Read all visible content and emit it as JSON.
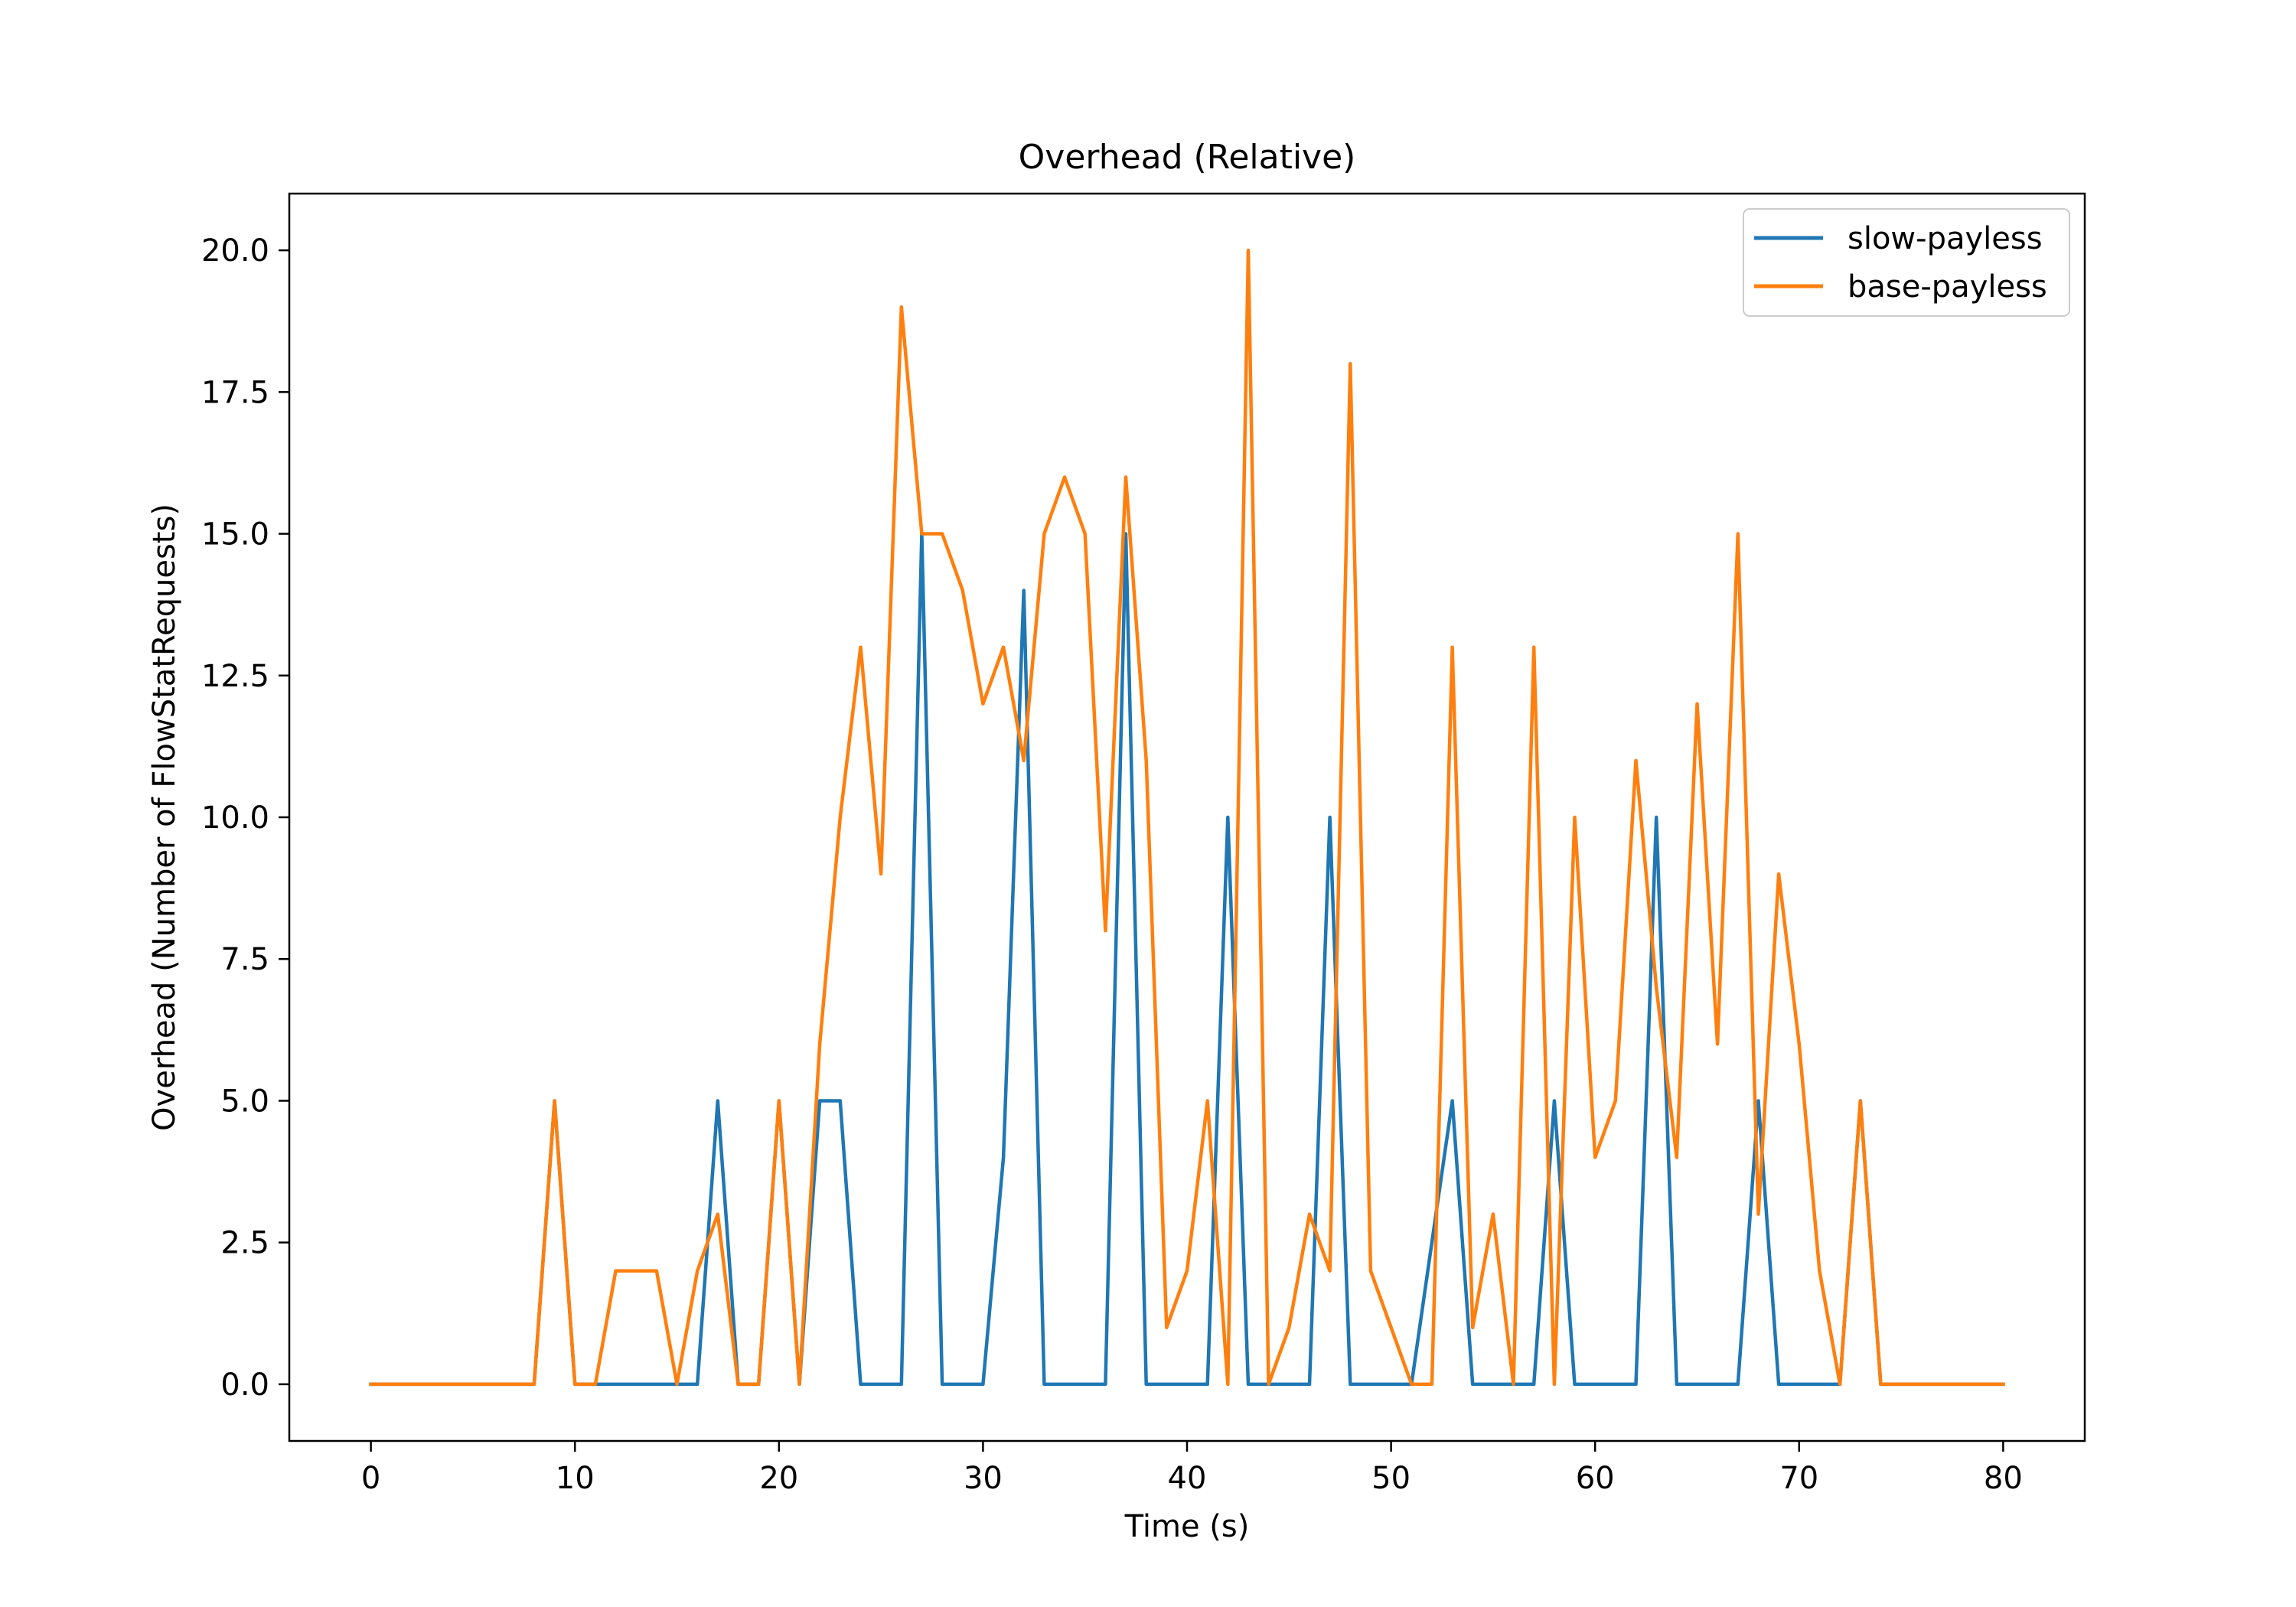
{
  "chart_data": {
    "type": "line",
    "title": "Overhead (Relative)",
    "xlabel": "Time (s)",
    "ylabel": "Overhead (Number of FlowStatRequests)",
    "xlim": [
      -4,
      84
    ],
    "ylim": [
      -1,
      21
    ],
    "xticks": [
      0,
      10,
      20,
      30,
      40,
      50,
      60,
      70,
      80
    ],
    "xtick_labels": [
      "0",
      "10",
      "20",
      "30",
      "40",
      "50",
      "60",
      "70",
      "80"
    ],
    "yticks": [
      0,
      2.5,
      5,
      7.5,
      10,
      12.5,
      15,
      17.5,
      20
    ],
    "ytick_labels": [
      "0.0",
      "2.5",
      "5.0",
      "7.5",
      "10.0",
      "12.5",
      "15.0",
      "17.5",
      "20.0"
    ],
    "grid": false,
    "legend_position": "top-right",
    "x": [
      0,
      1,
      2,
      3,
      4,
      5,
      6,
      7,
      8,
      9,
      10,
      11,
      12,
      13,
      14,
      15,
      16,
      17,
      18,
      19,
      20,
      21,
      22,
      23,
      24,
      25,
      26,
      27,
      28,
      29,
      30,
      31,
      32,
      33,
      34,
      35,
      36,
      37,
      38,
      39,
      40,
      41,
      42,
      43,
      44,
      45,
      46,
      47,
      48,
      49,
      50,
      51,
      52,
      53,
      54,
      55,
      56,
      57,
      58,
      59,
      60,
      61,
      62,
      63,
      64,
      65,
      66,
      67,
      68,
      69,
      70,
      71,
      72,
      73,
      74,
      75,
      76,
      77,
      78,
      79,
      80
    ],
    "series": [
      {
        "name": "slow-payless",
        "color": "#1f77b4",
        "values": [
          0,
          0,
          0,
          0,
          0,
          0,
          0,
          0,
          0,
          5,
          0,
          0,
          0,
          0,
          0,
          0,
          0,
          5,
          0,
          0,
          5,
          0,
          5,
          5,
          0,
          0,
          0,
          15,
          0,
          0,
          0,
          4,
          14,
          0,
          0,
          0,
          0,
          15,
          0,
          0,
          0,
          0,
          10,
          0,
          0,
          0,
          0,
          10,
          0,
          0,
          0,
          0,
          2.5,
          5,
          0,
          0,
          0,
          0,
          5,
          0,
          0,
          0,
          0,
          10,
          0,
          0,
          0,
          0,
          5,
          0,
          0,
          0,
          0,
          5,
          0,
          0,
          0,
          0,
          0,
          0,
          0
        ]
      },
      {
        "name": "base-payless",
        "color": "#ff7f0e",
        "values": [
          0,
          0,
          0,
          0,
          0,
          0,
          0,
          0,
          0,
          5,
          0,
          0,
          2,
          2,
          2,
          0,
          2,
          3,
          0,
          0,
          5,
          0,
          6,
          10,
          13,
          9,
          19,
          15,
          15,
          14,
          12,
          13,
          11,
          15,
          16,
          15,
          8,
          16,
          11,
          1,
          2,
          5,
          0,
          20,
          0,
          1,
          3,
          2,
          18,
          2,
          1,
          0,
          0,
          13,
          1,
          3,
          0,
          13,
          0,
          10,
          4,
          5,
          11,
          7,
          4,
          12,
          6,
          15,
          3,
          9,
          6,
          2,
          0,
          5,
          0,
          0,
          0,
          0,
          0,
          0,
          0
        ]
      }
    ]
  }
}
